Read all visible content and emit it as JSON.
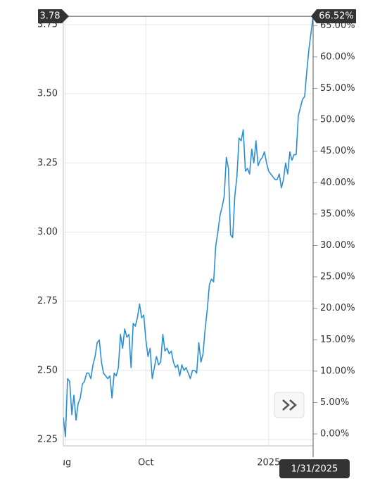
{
  "chart_data": {
    "type": "line",
    "series": [
      {
        "name": null,
        "color": "#2a8fd4",
        "values": [
          2.33,
          2.26,
          2.47,
          2.46,
          2.34,
          2.41,
          2.32,
          2.38,
          2.4,
          2.45,
          2.46,
          2.49,
          2.49,
          2.47,
          2.52,
          2.55,
          2.6,
          2.61,
          2.53,
          2.49,
          2.48,
          2.47,
          2.48,
          2.4,
          2.49,
          2.48,
          2.51,
          2.63,
          2.58,
          2.65,
          2.62,
          2.63,
          2.51,
          2.67,
          2.66,
          2.69,
          2.74,
          2.69,
          2.7,
          2.61,
          2.55,
          2.58,
          2.47,
          2.51,
          2.55,
          2.52,
          2.53,
          2.63,
          2.57,
          2.58,
          2.56,
          2.57,
          2.53,
          2.51,
          2.52,
          2.48,
          2.52,
          2.5,
          2.51,
          2.49,
          2.47,
          2.5,
          2.5,
          2.49,
          2.6,
          2.53,
          2.56,
          2.65,
          2.72,
          2.81,
          2.83,
          2.82,
          2.95,
          3.0,
          3.06,
          3.09,
          3.13,
          3.27,
          3.23,
          2.99,
          2.98,
          3.13,
          3.2,
          3.34,
          3.33,
          3.37,
          3.22,
          3.23,
          3.21,
          3.3,
          3.25,
          3.33,
          3.24,
          3.26,
          3.27,
          3.29,
          3.25,
          3.22,
          3.21,
          3.2,
          3.19,
          3.19,
          3.21,
          3.16,
          3.19,
          3.25,
          3.21,
          3.29,
          3.26,
          3.28,
          3.28,
          3.42,
          3.45,
          3.48,
          3.49,
          3.58,
          3.66,
          3.72,
          3.78
        ]
      }
    ],
    "xlim": [
      0,
      118
    ],
    "xticks": [
      {
        "value": 1,
        "label": "ug"
      },
      {
        "value": 39,
        "label": "Oct"
      },
      {
        "value": 97,
        "label": "2025"
      }
    ],
    "ylim": [
      2.227,
      3.783
    ],
    "yticks": [
      {
        "value": 2.25,
        "label": "2.25"
      },
      {
        "value": 2.5,
        "label": "2.50"
      },
      {
        "value": 2.75,
        "label": "2.75"
      },
      {
        "value": 3,
        "label": "3.00"
      },
      {
        "value": 3.25,
        "label": "3.25"
      },
      {
        "value": 3.5,
        "label": "3.50"
      },
      {
        "value": 3.75,
        "label": "3.75"
      }
    ],
    "y2lim": [
      -1.9,
      66.6
    ],
    "y2ticks": [
      {
        "value": 0,
        "label": "0.00%"
      },
      {
        "value": 5,
        "label": "5.00%"
      },
      {
        "value": 10,
        "label": "10.00%"
      },
      {
        "value": 15,
        "label": "15.00%"
      },
      {
        "value": 20,
        "label": "20.00%"
      },
      {
        "value": 25,
        "label": "25.00%"
      },
      {
        "value": 30,
        "label": "30.00%"
      },
      {
        "value": 35,
        "label": "35.00%"
      },
      {
        "value": 40,
        "label": "40.00%"
      },
      {
        "value": 45,
        "label": "45.00%"
      },
      {
        "value": 50,
        "label": "50.00%"
      },
      {
        "value": 55,
        "label": "55.00%"
      },
      {
        "value": 60,
        "label": "60.00%"
      },
      {
        "value": 65,
        "label": "65.00%"
      }
    ],
    "grid": true,
    "crosshair": {
      "y": 3.78,
      "y2_label": "66.52%",
      "x_label": "1/31/2025"
    }
  }
}
